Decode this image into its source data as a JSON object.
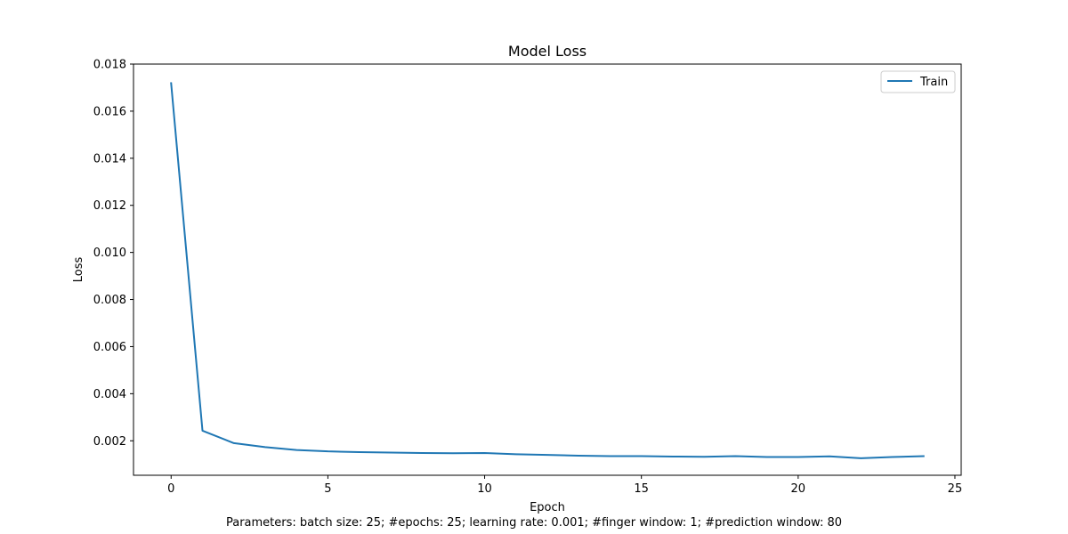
{
  "chart_data": {
    "type": "line",
    "title": "Model Loss",
    "xlabel": "Epoch",
    "ylabel": "Loss",
    "xlim": [
      -1.2,
      25.2
    ],
    "ylim": [
      0.000536,
      0.018
    ],
    "xticks": [
      0,
      5,
      10,
      15,
      20,
      25
    ],
    "xtick_labels": [
      "0",
      "5",
      "10",
      "15",
      "20",
      "25"
    ],
    "yticks": [
      0.002,
      0.004,
      0.006,
      0.008,
      0.01,
      0.012,
      0.014,
      0.016,
      0.018
    ],
    "ytick_labels": [
      "0.002",
      "0.004",
      "0.006",
      "0.008",
      "0.010",
      "0.012",
      "0.014",
      "0.016",
      "0.018"
    ],
    "grid": false,
    "legend_position": "upper right",
    "series": [
      {
        "name": "Train",
        "color": "#1f77b4",
        "x": [
          0,
          1,
          2,
          3,
          4,
          5,
          6,
          7,
          8,
          9,
          10,
          11,
          12,
          13,
          14,
          15,
          16,
          17,
          18,
          19,
          20,
          21,
          22,
          23,
          24
        ],
        "y": [
          0.01719,
          0.00243,
          0.0019,
          0.00173,
          0.00161,
          0.00155,
          0.00152,
          0.0015,
          0.00148,
          0.00147,
          0.00148,
          0.00143,
          0.0014,
          0.00137,
          0.00135,
          0.00135,
          0.00133,
          0.00132,
          0.00135,
          0.00131,
          0.00131,
          0.00134,
          0.00126,
          0.00131,
          0.00135
        ]
      }
    ]
  },
  "caption": "Parameters: batch size: 25; #epochs: 25; learning rate: 0.001; #finger window: 1; #prediction window: 80"
}
